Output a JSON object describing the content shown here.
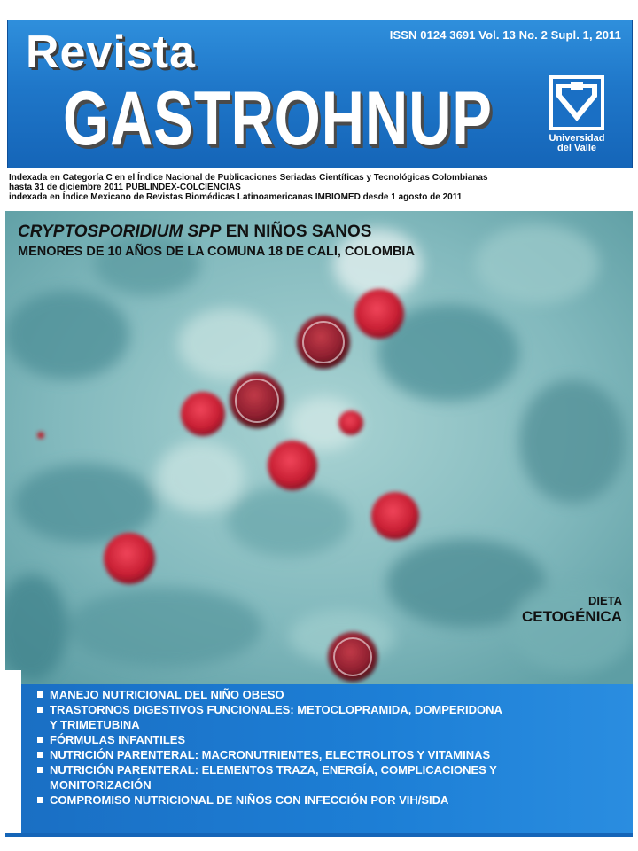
{
  "journal": {
    "title_small": "Revista",
    "title_main": "GASTROHNUP",
    "issn_line": "ISSN 0124 3691 Vol. 13 No. 2 Supl. 1, 2011",
    "publisher": [
      "Universidad",
      "del Valle"
    ]
  },
  "indexing": [
    "Indexada en Categoría C en el Índice Nacional de Publicaciones Seriadas Científicas y Tecnológicas Colombianas",
    "hasta 31 de diciembre 2011 PUBLINDEX-COLCIENCIAS",
    "indexada en Índice Mexicano de Revistas Biomédicas Latinoamericanas IMBIOMED desde 1 agosto de 2011"
  ],
  "cover_story": {
    "title_italic": "CRYPTOSPORIDIUM SPP",
    "title_rest": " EN NIÑOS SANOS",
    "subtitle": "MENORES DE 10 AÑOS DE LA COMUNA 18 DE CALI, COLOMBIA"
  },
  "side_feature": {
    "line1": "DIETA",
    "line2": "CETOGÉNICA"
  },
  "topics": [
    [
      "MANEJO NUTRICIONAL DEL NIÑO OBESO"
    ],
    [
      "TRASTORNOS DIGESTIVOS FUNCIONALES: METOCLOPRAMIDA, DOMPERIDONA",
      "Y TRIMETUBINA"
    ],
    [
      "FÓRMULAS INFANTILES"
    ],
    [
      "NUTRICIÓN PARENTERAL: MACRONUTRIENTES, ELECTROLITOS Y VITAMINAS"
    ],
    [
      "NUTRICIÓN PARENTERAL: ELEMENTOS TRAZA, ENERGÍA, COMPLICACIONES Y",
      "MONITORIZACIÓN"
    ],
    [
      "COMPROMISO NUTRICIONAL DE NIÑOS CON INFECCIÓN POR VIH/SIDA"
    ]
  ],
  "colors": {
    "brand_blue": "#1f77c9",
    "oocyst_red": "#d0263a",
    "stain_teal": "#5e9ea4"
  }
}
